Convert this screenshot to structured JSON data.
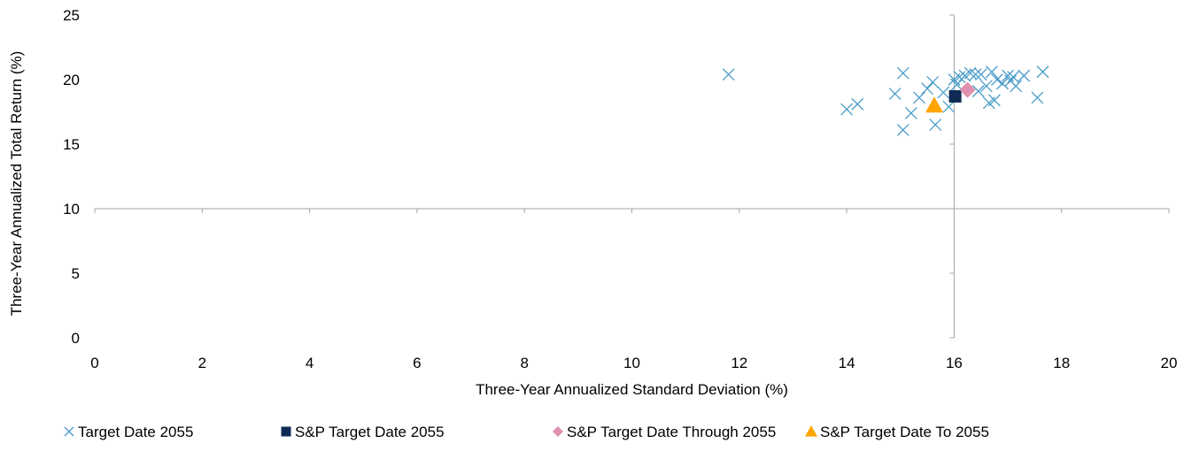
{
  "chart_data": {
    "type": "scatter",
    "title": "",
    "xlabel": "Three-Year Annualized Standard Deviation (%)",
    "ylabel": "Three-Year Annualized Total Return (%)",
    "xlim": [
      0,
      20
    ],
    "ylim": [
      0,
      25
    ],
    "xticks": [
      "0",
      "2",
      "4",
      "6",
      "8",
      "10",
      "12",
      "14",
      "16",
      "18",
      "20"
    ],
    "yticks": [
      "0",
      "5",
      "10",
      "15",
      "20",
      "25"
    ],
    "crosshair": {
      "x": 16,
      "y": 10
    },
    "grid": false,
    "legend_position": "bottom",
    "series": [
      {
        "name": "Target Date 2055",
        "marker": "x",
        "color": "#4a9cc9",
        "points": [
          [
            11.8,
            20.4
          ],
          [
            14.0,
            17.7
          ],
          [
            14.2,
            18.1
          ],
          [
            14.9,
            18.9
          ],
          [
            15.05,
            20.5
          ],
          [
            15.05,
            16.1
          ],
          [
            15.2,
            17.4
          ],
          [
            15.35,
            18.6
          ],
          [
            15.5,
            19.3
          ],
          [
            15.6,
            19.8
          ],
          [
            15.65,
            16.5
          ],
          [
            15.8,
            19.0
          ],
          [
            15.9,
            17.9
          ],
          [
            16.0,
            20.0
          ],
          [
            16.05,
            19.6
          ],
          [
            16.1,
            20.2
          ],
          [
            16.2,
            20.3
          ],
          [
            16.3,
            20.5
          ],
          [
            16.4,
            20.4
          ],
          [
            16.45,
            19.1
          ],
          [
            16.5,
            20.4
          ],
          [
            16.6,
            19.5
          ],
          [
            16.65,
            18.2
          ],
          [
            16.7,
            20.6
          ],
          [
            16.75,
            18.4
          ],
          [
            16.8,
            20.0
          ],
          [
            16.9,
            19.7
          ],
          [
            17.0,
            20.3
          ],
          [
            17.05,
            19.9
          ],
          [
            17.1,
            20.2
          ],
          [
            17.15,
            19.5
          ],
          [
            17.3,
            20.3
          ],
          [
            17.55,
            18.6
          ],
          [
            17.65,
            20.6
          ]
        ]
      },
      {
        "name": "S&P Target Date 2055",
        "marker": "square",
        "color": "#0f2a54",
        "points": [
          [
            16.02,
            18.7
          ]
        ]
      },
      {
        "name": "S&P Target Date Through 2055",
        "marker": "diamond",
        "color": "#e090b0",
        "points": [
          [
            16.25,
            19.2
          ]
        ]
      },
      {
        "name": "S&P Target Date To 2055",
        "marker": "triangle",
        "color": "#ffa500",
        "points": [
          [
            15.63,
            18.0
          ]
        ]
      }
    ]
  }
}
